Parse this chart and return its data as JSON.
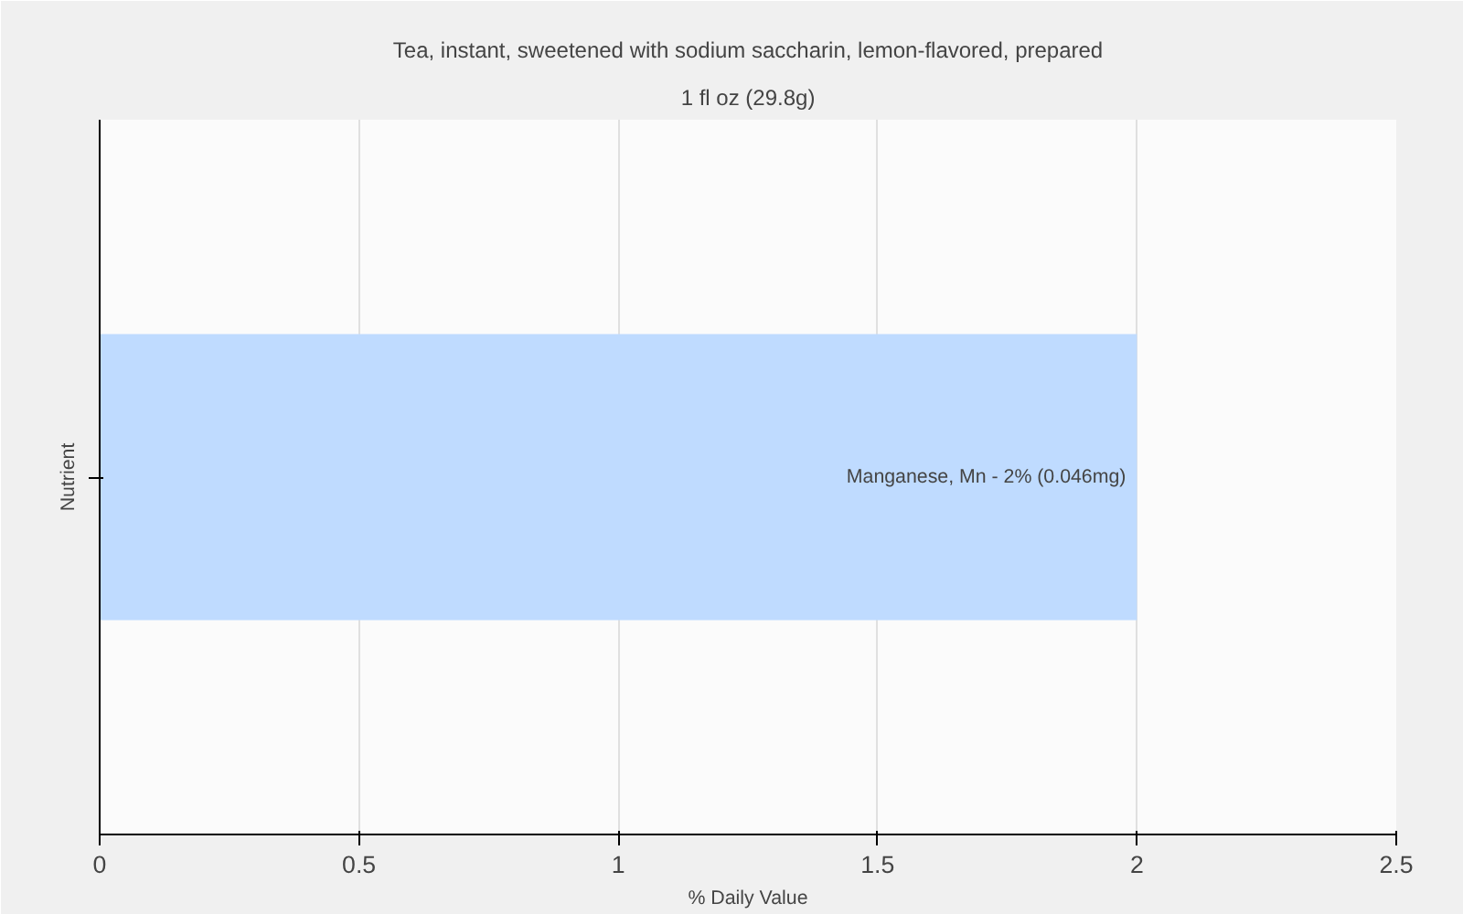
{
  "chart_data": {
    "type": "bar",
    "orientation": "horizontal",
    "title": "Tea, instant, sweetened with sodium saccharin, lemon-flavored, prepared",
    "subtitle": "1 fl oz (29.8g)",
    "xlabel": "% Daily Value",
    "ylabel": "Nutrient",
    "categories": [
      null
    ],
    "values": [
      2
    ],
    "color": "#bfdbff",
    "annotations": [
      {
        "text": "Manganese, Mn - 2% (0.046mg)",
        "x": 2
      }
    ],
    "xlim": [
      0,
      2.5
    ],
    "xticks": [
      0,
      0.5,
      1,
      1.5,
      2,
      2.5
    ],
    "grid": "x"
  }
}
